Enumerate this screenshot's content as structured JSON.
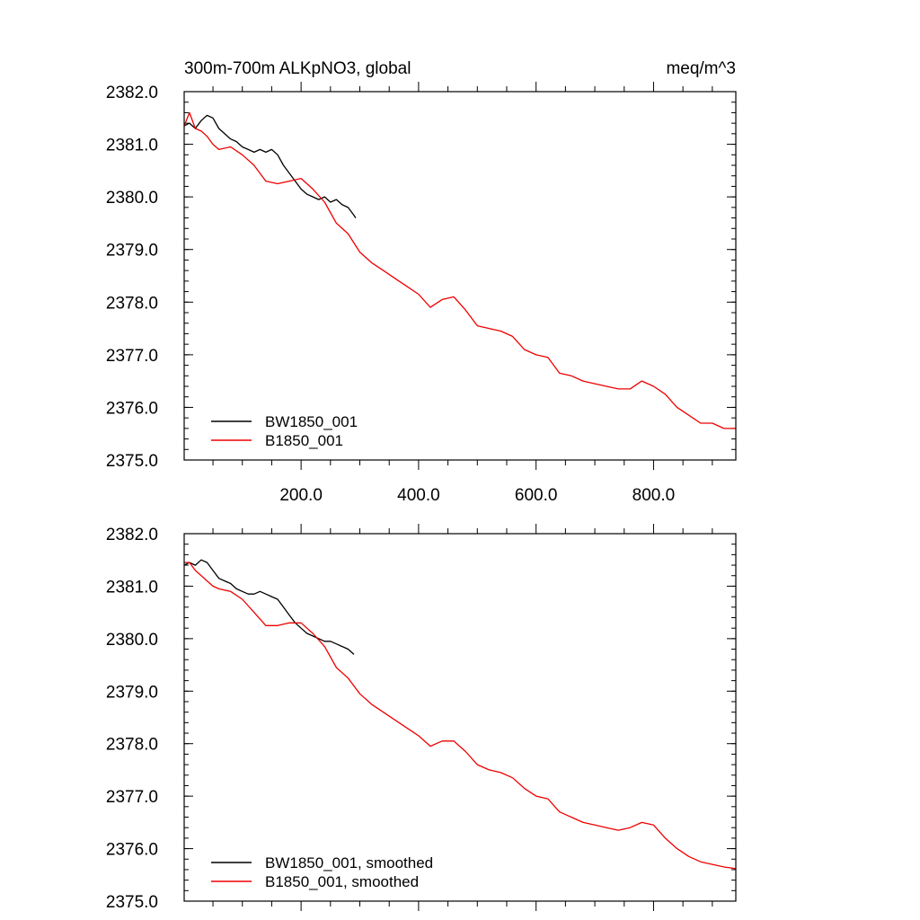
{
  "chart_data": [
    {
      "type": "line",
      "title": "300m-700m ALKpNO3, global",
      "units": "meq/m^3",
      "xlabel": "",
      "ylabel": "",
      "xlim": [
        1,
        940
      ],
      "ylim": [
        2375.0,
        2382.0
      ],
      "x_ticks": [
        200,
        400,
        600,
        800
      ],
      "x_tick_labels": [
        "200.0",
        "400.0",
        "600.0",
        "800.0"
      ],
      "y_ticks": [
        2375,
        2376,
        2377,
        2378,
        2379,
        2380,
        2381,
        2382
      ],
      "y_tick_labels": [
        "2375.0",
        "2376.0",
        "2377.0",
        "2378.0",
        "2379.0",
        "2380.0",
        "2381.0",
        "2382.0"
      ],
      "grid": false,
      "legend_position": "bottom-left",
      "series": [
        {
          "name": "BW1850_001",
          "color": "#000000",
          "x": [
            1,
            10,
            20,
            30,
            40,
            50,
            60,
            70,
            80,
            90,
            100,
            110,
            120,
            130,
            140,
            150,
            160,
            170,
            180,
            190,
            200,
            210,
            220,
            230,
            240,
            250,
            260,
            270,
            280,
            290,
            293
          ],
          "values": [
            2381.35,
            2381.4,
            2381.3,
            2381.45,
            2381.55,
            2381.5,
            2381.3,
            2381.2,
            2381.1,
            2381.05,
            2380.95,
            2380.9,
            2380.85,
            2380.9,
            2380.85,
            2380.9,
            2380.8,
            2380.6,
            2380.45,
            2380.3,
            2380.15,
            2380.05,
            2380.0,
            2379.95,
            2380.0,
            2379.9,
            2379.95,
            2379.85,
            2379.8,
            2379.65,
            2379.6
          ]
        },
        {
          "name": "B1850_001",
          "color": "#ee0000",
          "x": [
            1,
            10,
            20,
            30,
            40,
            50,
            60,
            80,
            100,
            120,
            140,
            160,
            180,
            200,
            220,
            240,
            260,
            280,
            300,
            320,
            340,
            360,
            380,
            400,
            420,
            440,
            460,
            480,
            500,
            520,
            540,
            560,
            580,
            600,
            620,
            640,
            660,
            680,
            700,
            720,
            740,
            760,
            780,
            800,
            820,
            840,
            860,
            880,
            900,
            920,
            940
          ],
          "values": [
            2381.35,
            2381.6,
            2381.3,
            2381.25,
            2381.15,
            2381.0,
            2380.9,
            2380.95,
            2380.8,
            2380.6,
            2380.3,
            2380.25,
            2380.3,
            2380.35,
            2380.15,
            2379.9,
            2379.5,
            2379.3,
            2378.95,
            2378.75,
            2378.6,
            2378.45,
            2378.3,
            2378.15,
            2377.9,
            2378.05,
            2378.1,
            2377.85,
            2377.55,
            2377.5,
            2377.45,
            2377.35,
            2377.1,
            2377.0,
            2376.95,
            2376.65,
            2376.6,
            2376.5,
            2376.45,
            2376.4,
            2376.35,
            2376.35,
            2376.5,
            2376.4,
            2376.25,
            2376.0,
            2375.85,
            2375.7,
            2375.7,
            2375.6,
            2375.6
          ]
        }
      ]
    },
    {
      "type": "line",
      "title": "",
      "xlabel": "",
      "ylabel": "",
      "xlim": [
        1,
        940
      ],
      "ylim": [
        2375.0,
        2382.0
      ],
      "x_ticks": [
        200,
        400,
        600,
        800
      ],
      "x_tick_labels": [],
      "y_ticks": [
        2375,
        2376,
        2377,
        2378,
        2379,
        2380,
        2381,
        2382
      ],
      "y_tick_labels": [
        "2375.0",
        "2376.0",
        "2377.0",
        "2378.0",
        "2379.0",
        "2380.0",
        "2381.0",
        "2382.0"
      ],
      "grid": false,
      "legend_position": "bottom-left",
      "series": [
        {
          "name": "BW1850_001, smoothed",
          "color": "#000000",
          "x": [
            1,
            10,
            20,
            30,
            40,
            50,
            60,
            70,
            80,
            90,
            100,
            110,
            120,
            130,
            140,
            150,
            160,
            170,
            180,
            190,
            200,
            210,
            220,
            230,
            240,
            250,
            260,
            270,
            280,
            290
          ],
          "values": [
            2381.4,
            2381.45,
            2381.4,
            2381.5,
            2381.45,
            2381.3,
            2381.15,
            2381.1,
            2381.05,
            2380.95,
            2380.9,
            2380.85,
            2380.85,
            2380.9,
            2380.85,
            2380.8,
            2380.75,
            2380.6,
            2380.45,
            2380.3,
            2380.2,
            2380.1,
            2380.05,
            2380.0,
            2379.95,
            2379.95,
            2379.9,
            2379.85,
            2379.8,
            2379.7
          ]
        },
        {
          "name": "B1850_001, smoothed",
          "color": "#ee0000",
          "x": [
            1,
            10,
            20,
            30,
            40,
            50,
            60,
            80,
            100,
            120,
            140,
            160,
            180,
            200,
            220,
            240,
            260,
            280,
            300,
            320,
            340,
            360,
            380,
            400,
            420,
            440,
            460,
            480,
            500,
            520,
            540,
            560,
            580,
            600,
            620,
            640,
            660,
            680,
            700,
            720,
            740,
            760,
            780,
            800,
            820,
            840,
            860,
            880,
            900,
            920,
            940
          ],
          "values": [
            2381.45,
            2381.45,
            2381.3,
            2381.2,
            2381.1,
            2381.0,
            2380.95,
            2380.9,
            2380.75,
            2380.5,
            2380.25,
            2380.25,
            2380.3,
            2380.3,
            2380.1,
            2379.85,
            2379.45,
            2379.25,
            2378.95,
            2378.75,
            2378.6,
            2378.45,
            2378.3,
            2378.15,
            2377.95,
            2378.05,
            2378.05,
            2377.85,
            2377.6,
            2377.5,
            2377.45,
            2377.35,
            2377.15,
            2377.0,
            2376.95,
            2376.7,
            2376.6,
            2376.5,
            2376.45,
            2376.4,
            2376.35,
            2376.4,
            2376.5,
            2376.45,
            2376.2,
            2376.0,
            2375.85,
            2375.75,
            2375.7,
            2375.65,
            2375.62
          ]
        }
      ]
    }
  ]
}
